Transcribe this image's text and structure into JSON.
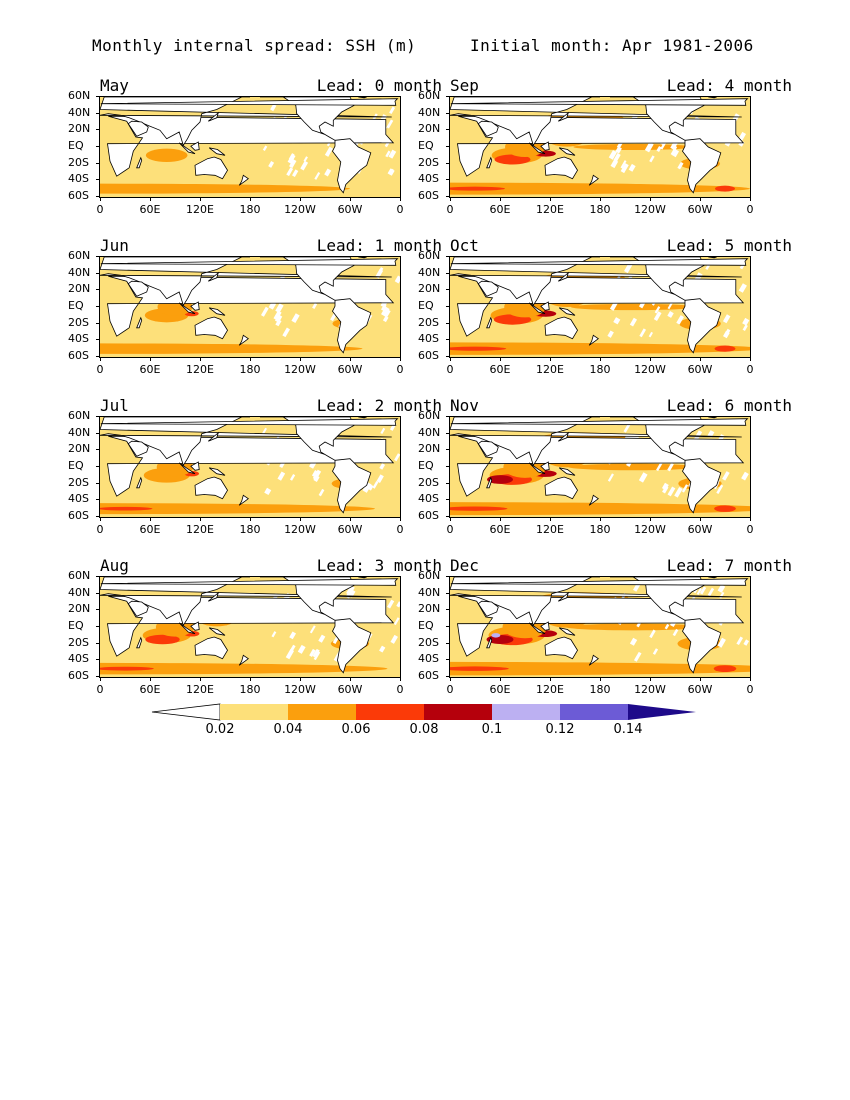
{
  "title_left": "Monthly internal spread: SSH (m)",
  "title_right": "Initial month: Apr 1981-2006",
  "lat_labels": [
    "60N",
    "40N",
    "20N",
    "EQ",
    "20S",
    "40S",
    "60S"
  ],
  "lon_labels": [
    "0",
    "60E",
    "120E",
    "180",
    "120W",
    "60W",
    "0"
  ],
  "panels": [
    {
      "month": "May",
      "lead": "Lead: 0 month",
      "intensity": 0
    },
    {
      "month": "Sep",
      "lead": "Lead: 4 month",
      "intensity": 4
    },
    {
      "month": "Jun",
      "lead": "Lead: 1 month",
      "intensity": 1
    },
    {
      "month": "Oct",
      "lead": "Lead: 5 month",
      "intensity": 5
    },
    {
      "month": "Jul",
      "lead": "Lead: 2 month",
      "intensity": 2
    },
    {
      "month": "Nov",
      "lead": "Lead: 6 month",
      "intensity": 6
    },
    {
      "month": "Aug",
      "lead": "Lead: 3 month",
      "intensity": 3
    },
    {
      "month": "Dec",
      "lead": "Lead: 7 month",
      "intensity": 7
    }
  ],
  "colorbar": {
    "levels": [
      "0.02",
      "0.04",
      "0.06",
      "0.08",
      "0.1",
      "0.12",
      "0.14"
    ],
    "colors": [
      "#ffffff",
      "#fde07a",
      "#fb9f0d",
      "#fb3a08",
      "#b5000c",
      "#bcb0f2",
      "#6c5bd6",
      "#1e0a8a"
    ]
  },
  "land_color": "#ffffff",
  "coast_color": "#000000"
}
